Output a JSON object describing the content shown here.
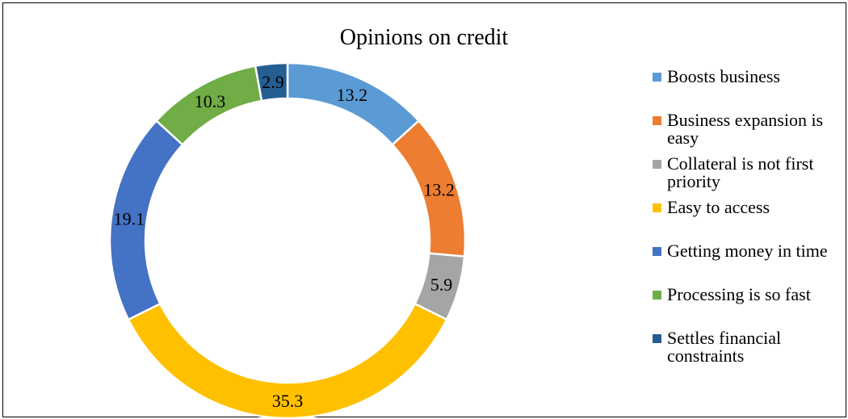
{
  "chart_data": {
    "type": "pie",
    "donut": true,
    "title": "Opinions on credit",
    "legend_position": "right",
    "categories": [
      "Boosts business",
      "Business expansion is easy",
      "Collateral is not first priority",
      "Easy to access",
      "Getting money in time",
      "Processing is so fast",
      "Settles financial constraints"
    ],
    "values": [
      13.2,
      13.2,
      5.9,
      35.3,
      19.1,
      10.3,
      2.9
    ],
    "value_labels": [
      "13.2",
      "13.2",
      "5.9",
      "35.3",
      "19.1",
      "10.3",
      "2.9"
    ],
    "colors": [
      "#5B9BD5",
      "#ED7D31",
      "#A5A5A5",
      "#FFC000",
      "#4472C4",
      "#70AD47",
      "#255E91"
    ]
  }
}
